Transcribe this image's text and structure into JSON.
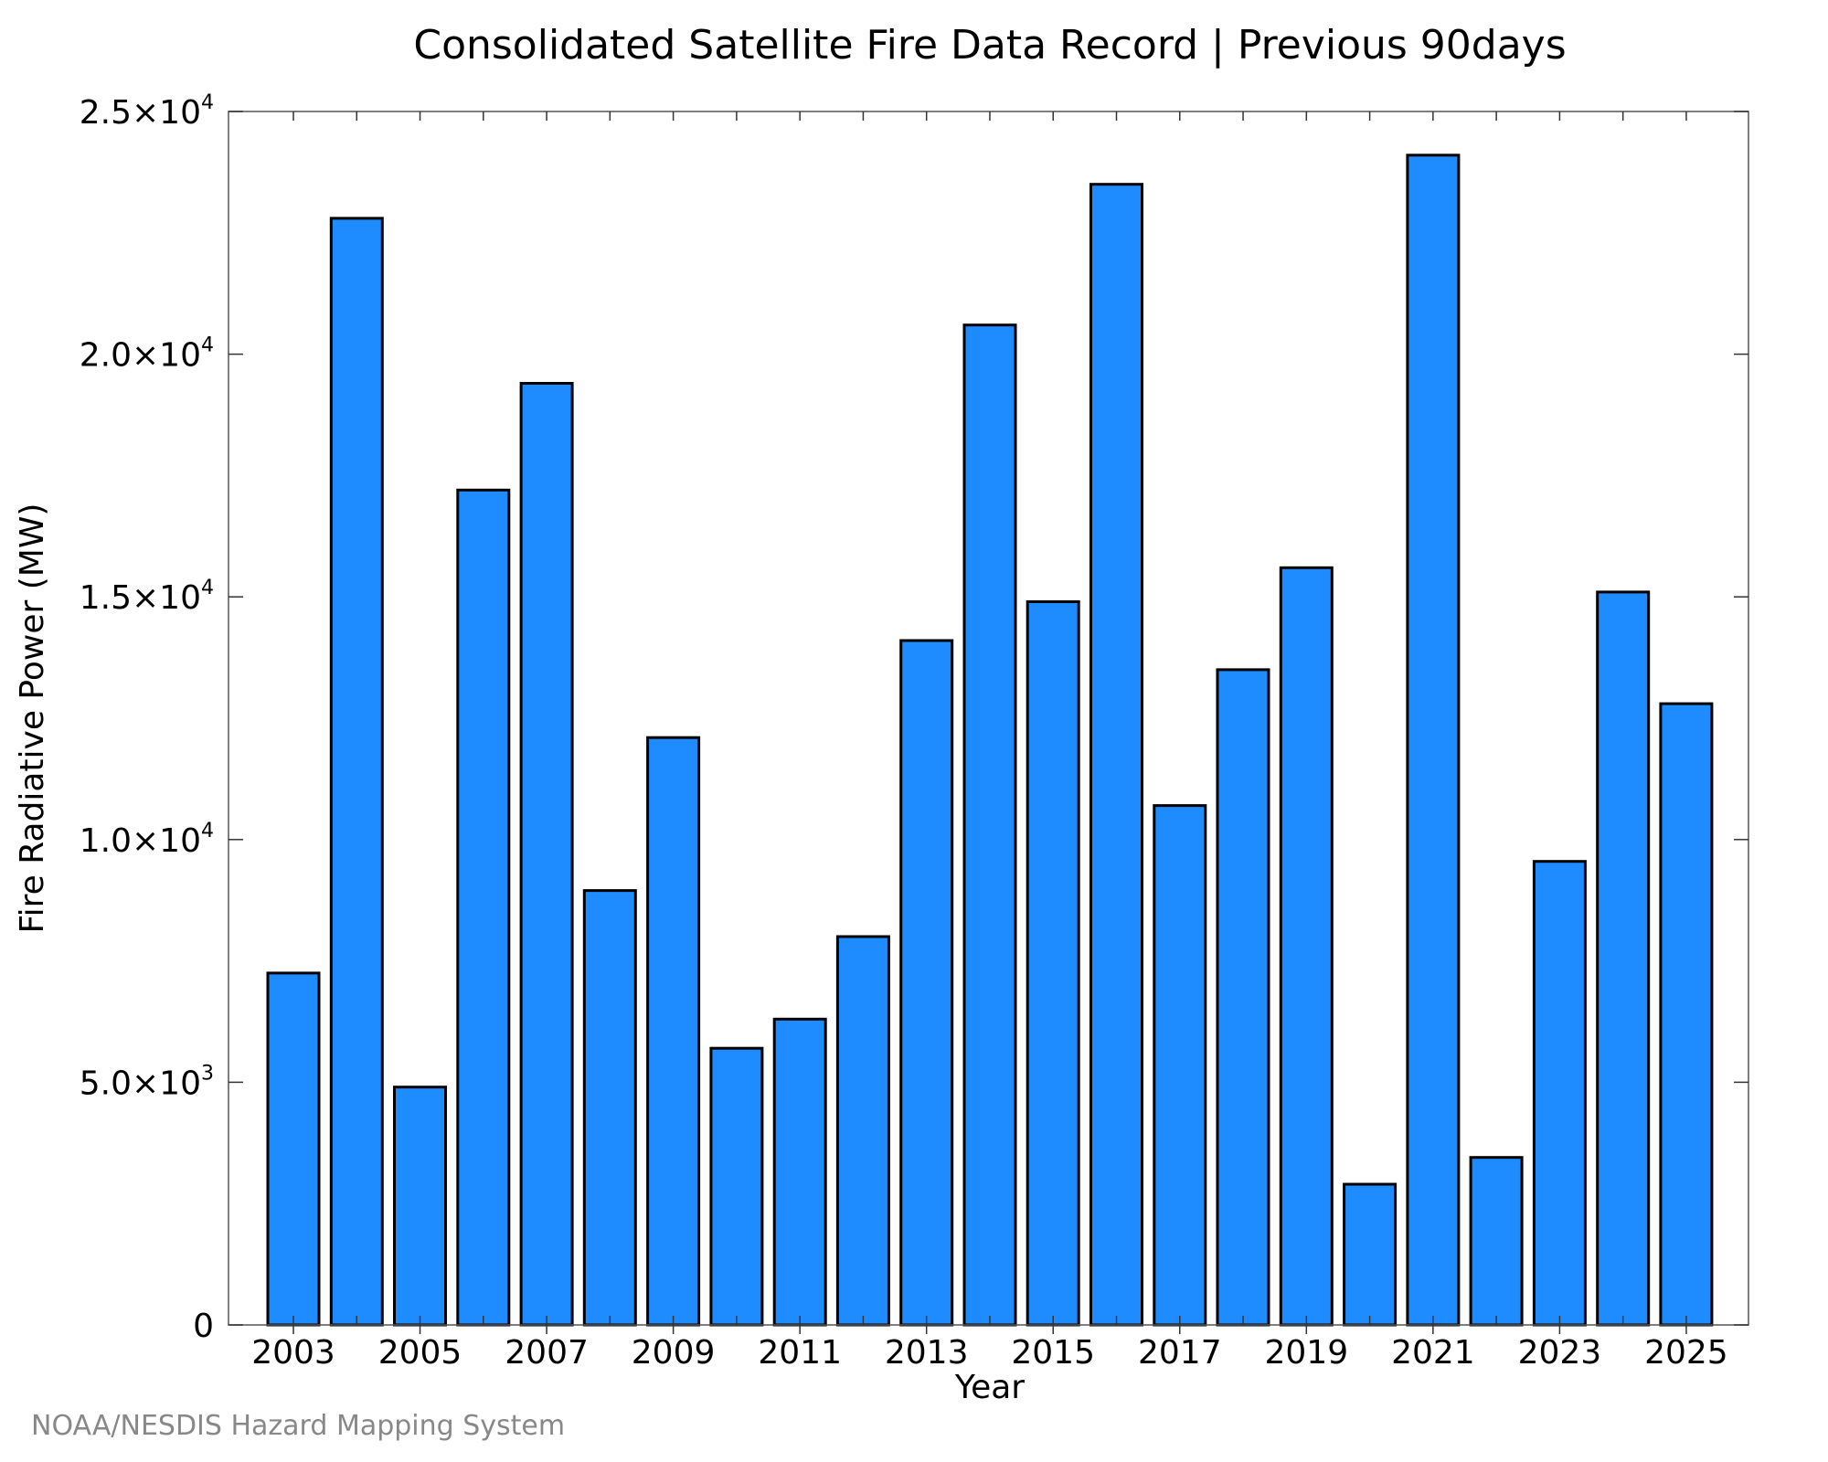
{
  "chart_data": {
    "type": "bar",
    "title": "Consolidated Satellite Fire Data Record | Previous 90days",
    "xlabel": "Year",
    "ylabel": "Fire Radiative Power (MW)",
    "credit": "NOAA/NESDIS Hazard Mapping System",
    "categories": [
      "2003",
      "2004",
      "2005",
      "2006",
      "2007",
      "2008",
      "2009",
      "2010",
      "2011",
      "2012",
      "2013",
      "2014",
      "2015",
      "2016",
      "2017",
      "2018",
      "2019",
      "2020",
      "2021",
      "2022",
      "2023",
      "2024",
      "2025"
    ],
    "values": [
      7250,
      22800,
      4900,
      17200,
      19400,
      8950,
      12100,
      5700,
      6300,
      8000,
      14100,
      20600,
      14900,
      23500,
      10700,
      13500,
      15600,
      2900,
      24100,
      3450,
      9550,
      15100,
      12800
    ],
    "x_tick_labels": [
      "2003",
      "2005",
      "2007",
      "2009",
      "2011",
      "2013",
      "2015",
      "2017",
      "2019",
      "2021",
      "2023",
      "2025"
    ],
    "y_ticks": [
      {
        "value": 0,
        "mantissa": "0",
        "exponent": ""
      },
      {
        "value": 5000,
        "mantissa": "5.0×10",
        "exponent": "3"
      },
      {
        "value": 10000,
        "mantissa": "1.0×10",
        "exponent": "4"
      },
      {
        "value": 15000,
        "mantissa": "1.5×10",
        "exponent": "4"
      },
      {
        "value": 20000,
        "mantissa": "2.0×10",
        "exponent": "4"
      },
      {
        "value": 25000,
        "mantissa": "2.5×10",
        "exponent": "4"
      }
    ],
    "ylim": [
      0,
      25000
    ],
    "grid": false,
    "bar_color": "#1e8cff",
    "bar_edge_color": "#000000"
  }
}
